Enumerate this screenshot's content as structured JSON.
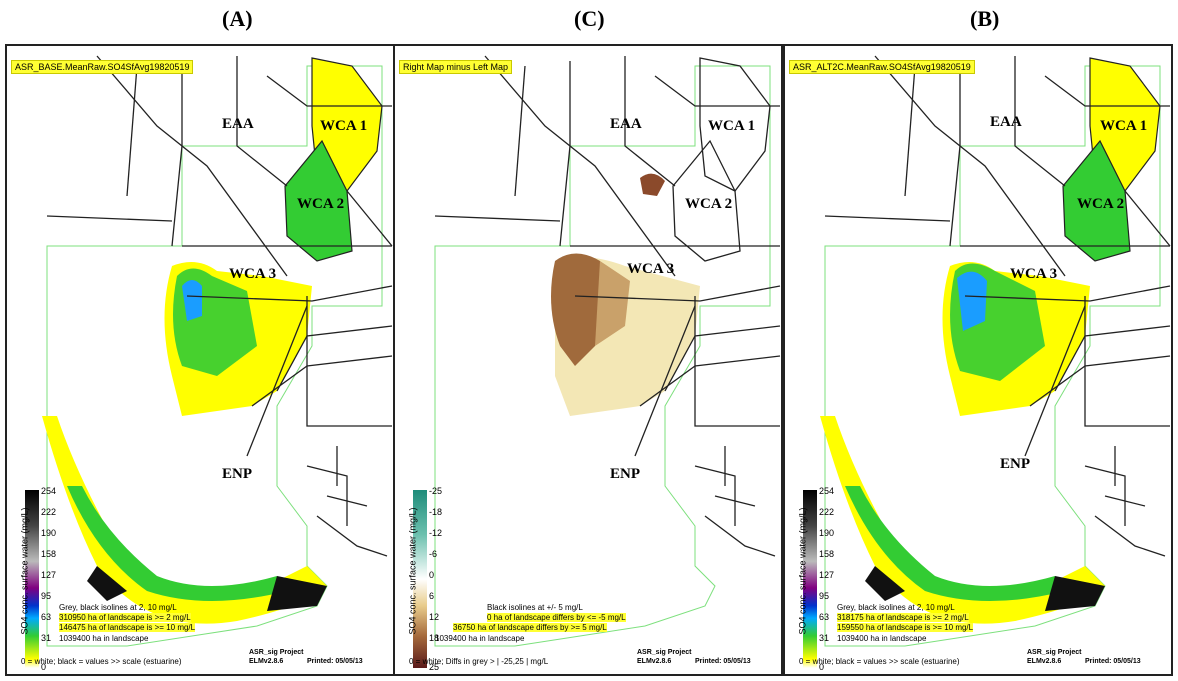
{
  "panels": [
    {
      "letter": "(A)",
      "title": "ASR_BASE.MeanRaw.SO4SfAvg19820519",
      "regions": {
        "eaa": "EAA",
        "wca1": "WCA 1",
        "wca2": "WCA 2",
        "wca3": "WCA 3",
        "enp": "ENP"
      },
      "legend": {
        "axis_label": "SO4 conc. surface water (mg/L)",
        "ticks": [
          "254",
          "222",
          "190",
          "158",
          "127",
          "95",
          "63",
          "31",
          "0"
        ]
      },
      "notes": {
        "line1": "Grey, black isolines at 2, 10 mg/L",
        "line2": "310950 ha of landscape is >= 2 mg/L",
        "line3": "146475 ha of landscape is >= 10 mg/L",
        "line4": "1039400 ha in landscape",
        "line5": "0 = white; black = values >> scale (estuarine)"
      },
      "credit": {
        "project": "ASR_sig Project",
        "version": "ELMv2.8.6",
        "printed": "Printed: 05/05/13"
      }
    },
    {
      "letter": "(C)",
      "title": "Right Map minus Left Map",
      "regions": {
        "eaa": "EAA",
        "wca1": "WCA 1",
        "wca2": "WCA 2",
        "wca3": "WCA 3",
        "enp": "ENP"
      },
      "legend": {
        "axis_label": "SO4 conc. surface water (mg/L)",
        "ticks": [
          "-25",
          "-18",
          "-12",
          "-6",
          "0",
          "6",
          "12",
          "18",
          "25"
        ]
      },
      "notes": {
        "line1": "Black isolines at +/- 5 mg/L",
        "line2": "0 ha of landscape differs by <= -5 mg/L",
        "line3": "36750 ha of landscape differs by >= 5 mg/L",
        "line4": "1039400 ha in landscape",
        "line5": "0 = white; Diffs in grey > | -25,25 | mg/L"
      },
      "credit": {
        "project": "ASR_sig Project",
        "version": "ELMv2.8.6",
        "printed": "Printed: 05/05/13"
      }
    },
    {
      "letter": "(B)",
      "title": "ASR_ALT2C.MeanRaw.SO4SfAvg19820519",
      "regions": {
        "eaa": "EAA",
        "wca1": "WCA 1",
        "wca2": "WCA 2",
        "wca3": "WCA 3",
        "enp": "ENP"
      },
      "legend": {
        "axis_label": "SO4 conc. surface water (mg/L)",
        "ticks": [
          "254",
          "222",
          "190",
          "158",
          "127",
          "95",
          "63",
          "31",
          "0"
        ]
      },
      "notes": {
        "line1": "Grey, black isolines at 2, 10 mg/L",
        "line2": "318175 ha of landscape is >= 2 mg/L",
        "line3": "159550 ha of landscape is >= 10 mg/L",
        "line4": "1039400 ha in landscape",
        "line5": "0 = white; black = values >> scale (estuarine)"
      },
      "credit": {
        "project": "ASR_sig Project",
        "version": "ELMv2.8.6",
        "printed": "Printed: 05/05/13"
      }
    }
  ],
  "colors": {
    "highlight": "#ffff33",
    "low": "#ffff00",
    "mid": "#33cc33",
    "high": "#0077ff",
    "diff_pos": "#8b5a2b",
    "diff_neg": "#1e8c7a"
  }
}
